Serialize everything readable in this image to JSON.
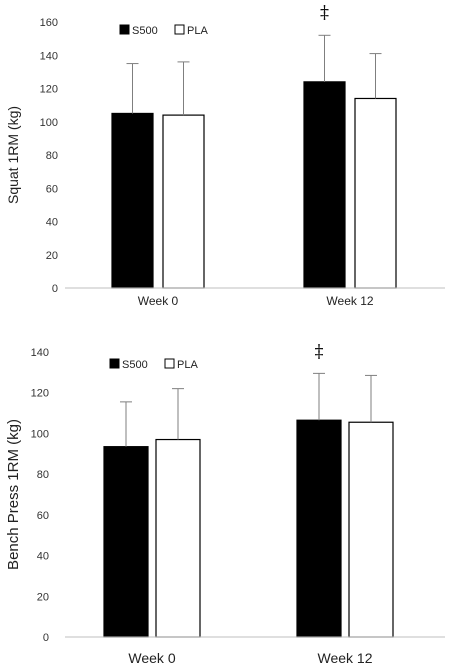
{
  "chart_data": [
    {
      "type": "bar",
      "categories": [
        "Week 0",
        "Week 12"
      ],
      "series": [
        {
          "name": "S500",
          "values": [
            105,
            124
          ],
          "errors": [
            30,
            28
          ],
          "color": "#000000"
        },
        {
          "name": "PLA",
          "values": [
            104,
            114
          ],
          "errors": [
            32,
            27
          ],
          "color": "#ffffff"
        }
      ],
      "ylabel": "Squat 1RM (kg)",
      "ylim": [
        0,
        160
      ],
      "yticks": [
        0,
        20,
        40,
        60,
        80,
        100,
        120,
        140,
        160
      ],
      "legend": "top-left",
      "grid": false,
      "annotations": [
        {
          "text": "‡",
          "category": "Week 12"
        }
      ]
    },
    {
      "type": "bar",
      "categories": [
        "Week 0",
        "Week 12"
      ],
      "series": [
        {
          "name": "S500",
          "values": [
            93.5,
            106.5
          ],
          "errors": [
            22,
            23
          ],
          "color": "#000000"
        },
        {
          "name": "PLA",
          "values": [
            97,
            105.5
          ],
          "errors": [
            25,
            23
          ],
          "color": "#ffffff"
        }
      ],
      "ylabel": "Bench Press 1RM (kg)",
      "ylim": [
        0,
        140
      ],
      "yticks": [
        0,
        20,
        40,
        60,
        80,
        100,
        120,
        140
      ],
      "legend": "top-left",
      "grid": false,
      "annotations": [
        {
          "text": "‡",
          "category": "Week 12"
        }
      ]
    }
  ]
}
